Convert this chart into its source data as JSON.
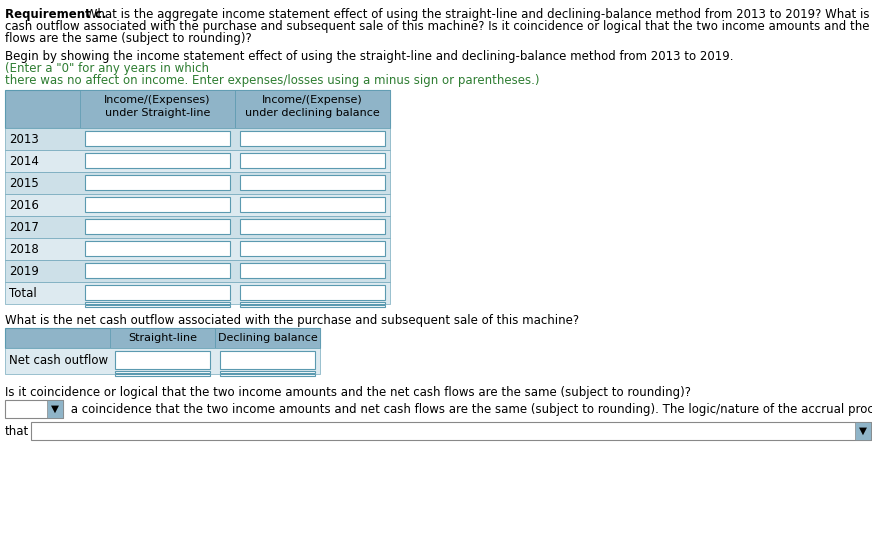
{
  "title_bold": "Requirement c.",
  "title_rest": " What is the aggregate income statement effect of using the straight-line and declining-balance method from 2013 to 2019? What is the net cash outflow associated with the purchase and subsequent sale of this machine? Is it coincidence or logical that the two income amounts and the net cash flows are the same (subject to rounding)?",
  "instruction_black": "Begin by showing the income statement effect of using the straight-line and declining-balance method from 2013 to 2019.",
  "instruction_green": "(Enter a \"0\" for any years in which there was no affect on income. Enter expenses/losses using a minus sign or parentheses.)",
  "col1_header_line1": "Income/(Expenses)",
  "col1_header_line2": "under Straight-line",
  "col2_header_line1": "Income/(Expense)",
  "col2_header_line2": "under declining balance",
  "rows": [
    "2013",
    "2014",
    "2015",
    "2016",
    "2017",
    "2018",
    "2019",
    "Total"
  ],
  "section2_title": "What is the net cash outflow associated with the purchase and subsequent sale of this machine?",
  "sec2_col1": "Straight-line",
  "sec2_col2": "Declining balance",
  "sec2_row": "Net cash outflow",
  "section3_title": "Is it coincidence or logical that the two income amounts and the net cash flows are the same (subject to rounding)?",
  "sec3_text": " a coincidence that the two income amounts and net cash flows are the same (subject to rounding). The logic/nature of the accrual process is such",
  "sec3_that": "that",
  "header_bg": "#8fb4c8",
  "row_bg_alt": "#cde0e8",
  "row_bg_main": "#ddeaf0",
  "input_bg": "#ffffff",
  "border_color": "#5b9ab0",
  "background": "#ffffff",
  "font_size": 8.5,
  "font_size_small": 8.0
}
